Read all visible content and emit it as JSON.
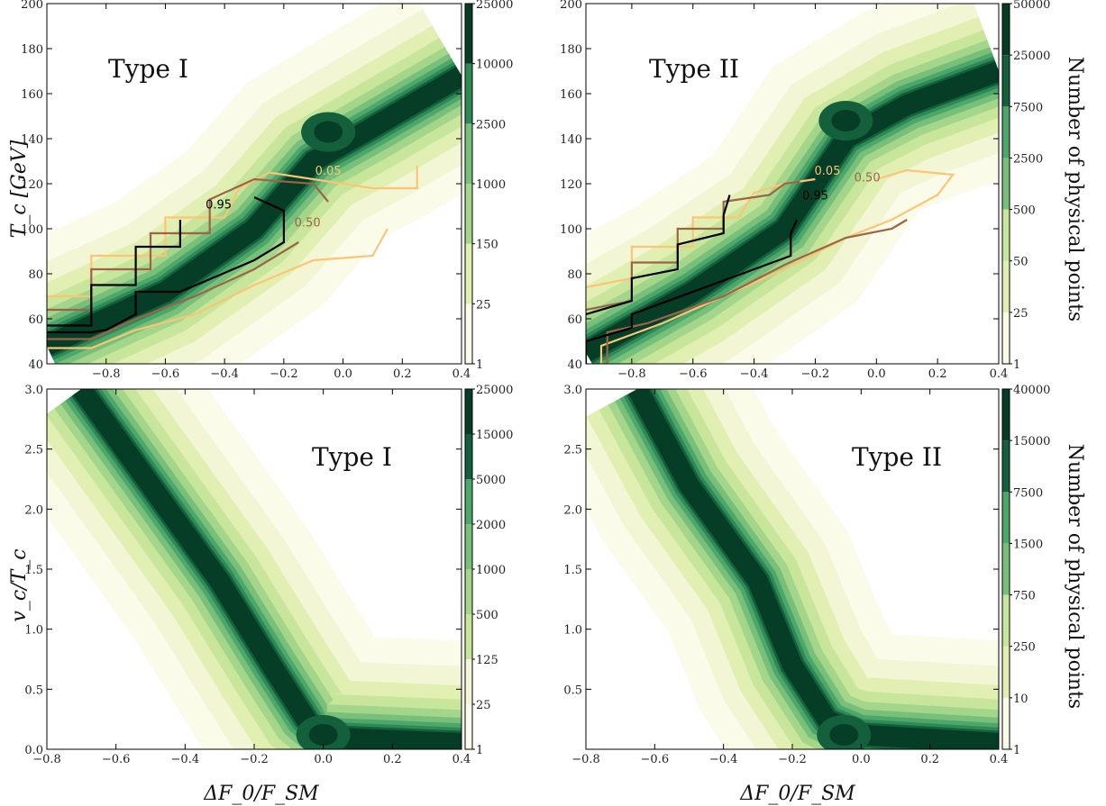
{
  "figure": {
    "ylabel_top": "T_c [GeV]",
    "ylabel_bottom": "v_c/T_c",
    "xlabel": "ΔF_0/F_SM",
    "colorbar_label": "Number of physical points"
  },
  "colors": {
    "levels": [
      "#fbfbe9",
      "#f2f6d4",
      "#e2efb3",
      "#c7e59b",
      "#a3d58a",
      "#78c07a",
      "#4da66a",
      "#2e8a55",
      "#14603c",
      "#063d26"
    ],
    "contour_005": "#fbc574",
    "contour_050": "#9c6446",
    "contour_095": "#000000"
  },
  "chart_data": [
    {
      "type": "heatmap",
      "panel": "top-left",
      "title": "Type I",
      "xlim": [
        -1.0,
        0.4
      ],
      "ylim": [
        40,
        200
      ],
      "xticks": [
        -0.8,
        -0.6,
        -0.4,
        -0.2,
        0.0,
        0.2,
        0.4
      ],
      "yticks": [
        40,
        60,
        80,
        100,
        120,
        140,
        160,
        180,
        200
      ],
      "ytick_labels": [
        "40",
        "60",
        "80",
        "100",
        "120",
        "140",
        "160",
        "180",
        "200"
      ],
      "colorbar_ticks": [
        "1",
        "25",
        "150",
        "1000",
        "2500",
        "10000",
        "25000"
      ],
      "density_ridge": [
        [
          -1.0,
          48
        ],
        [
          -0.6,
          72
        ],
        [
          -0.3,
          100
        ],
        [
          -0.1,
          130
        ],
        [
          0.1,
          145
        ],
        [
          0.4,
          168
        ]
      ],
      "peak": {
        "x": -0.05,
        "y": 143
      },
      "contour_levels": [
        {
          "label": "0.05",
          "upper": [
            [
              -1.0,
              70
            ],
            [
              -0.85,
              70
            ],
            [
              -0.85,
              88
            ],
            [
              -0.6,
              88
            ],
            [
              -0.6,
              105
            ],
            [
              -0.4,
              105
            ],
            [
              -0.35,
              118
            ],
            [
              -0.25,
              125
            ],
            [
              0.1,
              118
            ],
            [
              0.25,
              118
            ],
            [
              0.25,
              128
            ]
          ],
          "lower": [
            [
              -1.0,
              47
            ],
            [
              -0.85,
              47
            ],
            [
              -0.7,
              55
            ],
            [
              -0.5,
              62
            ],
            [
              -0.3,
              75
            ],
            [
              -0.1,
              86
            ],
            [
              0.1,
              88
            ],
            [
              0.15,
              100
            ]
          ]
        },
        {
          "label": "0.50",
          "upper": [
            [
              -1.0,
              64
            ],
            [
              -0.85,
              64
            ],
            [
              -0.85,
              82
            ],
            [
              -0.65,
              82
            ],
            [
              -0.65,
              98
            ],
            [
              -0.45,
              98
            ],
            [
              -0.45,
              113
            ],
            [
              -0.3,
              122
            ],
            [
              -0.1,
              120
            ],
            [
              -0.05,
              112
            ]
          ],
          "lower": [
            [
              -1.0,
              51
            ],
            [
              -0.85,
              51
            ],
            [
              -0.7,
              60
            ],
            [
              -0.5,
              70
            ],
            [
              -0.3,
              82
            ],
            [
              -0.15,
              94
            ]
          ]
        },
        {
          "label": "0.95",
          "upper": [
            [
              -1.0,
              57
            ],
            [
              -0.85,
              57
            ],
            [
              -0.85,
              75
            ],
            [
              -0.7,
              75
            ],
            [
              -0.7,
              92
            ],
            [
              -0.55,
              92
            ],
            [
              -0.55,
              104
            ]
          ],
          "lower": [
            [
              -1.0,
              54
            ],
            [
              -0.85,
              54
            ],
            [
              -0.8,
              55
            ],
            [
              -0.7,
              62
            ],
            [
              -0.7,
              72
            ],
            [
              -0.55,
              72
            ],
            [
              -0.3,
              86
            ],
            [
              -0.2,
              94
            ],
            [
              -0.2,
              108
            ],
            [
              -0.3,
              114
            ]
          ]
        }
      ],
      "contour_label_positions": [
        {
          "label": "0.05",
          "x": -0.05,
          "y": 124
        },
        {
          "label": "0.50",
          "x": -0.12,
          "y": 101
        },
        {
          "label": "0.95",
          "x": -0.42,
          "y": 109
        }
      ]
    },
    {
      "type": "heatmap",
      "panel": "top-right",
      "title": "Type II",
      "xlim": [
        -0.95,
        0.4
      ],
      "ylim": [
        40,
        200
      ],
      "xticks": [
        -0.8,
        -0.6,
        -0.4,
        -0.2,
        0.0,
        0.2,
        0.4
      ],
      "yticks": [
        40,
        60,
        80,
        100,
        120,
        140,
        160,
        180,
        200
      ],
      "ytick_labels": [
        "40",
        "60",
        "80",
        "100",
        "120",
        "140",
        "160",
        "180",
        "200"
      ],
      "colorbar_ticks": [
        "1",
        "25",
        "50",
        "500",
        "2500",
        "7500",
        "25000",
        "50000"
      ],
      "density_ridge": [
        [
          -0.95,
          45
        ],
        [
          -0.6,
          72
        ],
        [
          -0.3,
          100
        ],
        [
          -0.1,
          140
        ],
        [
          0.1,
          155
        ],
        [
          0.4,
          170
        ]
      ],
      "peak": {
        "x": -0.1,
        "y": 148
      },
      "contour_levels": [
        {
          "label": "0.05",
          "upper": [
            [
              -0.95,
              74
            ],
            [
              -0.8,
              78
            ],
            [
              -0.8,
              92
            ],
            [
              -0.6,
              92
            ],
            [
              -0.6,
              105
            ],
            [
              -0.45,
              105
            ],
            [
              -0.4,
              116
            ],
            [
              -0.3,
              120
            ],
            [
              -0.2,
              122
            ]
          ],
          "lower": [
            [
              -0.9,
              40
            ],
            [
              -0.9,
              48
            ],
            [
              -0.7,
              58
            ],
            [
              -0.5,
              70
            ],
            [
              -0.3,
              82
            ],
            [
              -0.1,
              96
            ],
            [
              0.05,
              104
            ],
            [
              0.2,
              115
            ],
            [
              0.25,
              124
            ],
            [
              0.1,
              126
            ],
            [
              0.0,
              122
            ]
          ]
        },
        {
          "label": "0.50",
          "upper": [
            [
              -0.95,
              64
            ],
            [
              -0.8,
              68
            ],
            [
              -0.8,
              85
            ],
            [
              -0.65,
              85
            ],
            [
              -0.65,
              100
            ],
            [
              -0.5,
              100
            ],
            [
              -0.5,
              112
            ],
            [
              -0.35,
              115
            ],
            [
              -0.3,
              120
            ],
            [
              -0.25,
              121
            ]
          ],
          "lower": [
            [
              -0.88,
              40
            ],
            [
              -0.88,
              54
            ],
            [
              -0.75,
              58
            ],
            [
              -0.5,
              70
            ],
            [
              -0.3,
              84
            ],
            [
              -0.1,
              96
            ],
            [
              0.05,
              100
            ],
            [
              0.1,
              104
            ]
          ]
        },
        {
          "label": "0.95",
          "upper": [
            [
              -0.95,
              62
            ],
            [
              -0.8,
              68
            ],
            [
              -0.8,
              78
            ],
            [
              -0.65,
              82
            ],
            [
              -0.65,
              93
            ],
            [
              -0.5,
              98
            ],
            [
              -0.5,
              106
            ],
            [
              -0.48,
              115
            ]
          ],
          "lower": [
            [
              -0.95,
              40
            ],
            [
              -0.95,
              50
            ],
            [
              -0.8,
              56
            ],
            [
              -0.8,
              62
            ],
            [
              -0.6,
              72
            ],
            [
              -0.4,
              82
            ],
            [
              -0.28,
              88
            ],
            [
              -0.28,
              98
            ],
            [
              -0.26,
              104
            ]
          ]
        }
      ],
      "contour_label_positions": [
        {
          "label": "0.05",
          "x": -0.16,
          "y": 124
        },
        {
          "label": "0.50",
          "x": -0.03,
          "y": 121
        },
        {
          "label": "0.95",
          "x": -0.2,
          "y": 113
        }
      ]
    },
    {
      "type": "heatmap",
      "panel": "bottom-left",
      "title": "Type I",
      "xlim": [
        -0.8,
        0.4
      ],
      "ylim": [
        0.0,
        3.0
      ],
      "xticks": [
        -0.8,
        -0.6,
        -0.4,
        -0.2,
        0.0,
        0.2,
        0.4
      ],
      "yticks": [
        0.0,
        0.5,
        1.0,
        1.5,
        2.0,
        2.5,
        3.0
      ],
      "ytick_labels": [
        "0.0",
        "0.5",
        "1.0",
        "1.5",
        "2.0",
        "2.5",
        "3.0"
      ],
      "colorbar_ticks": [
        "1",
        "25",
        "125",
        "500",
        "1000",
        "2000",
        "5000",
        "15000",
        "25000"
      ],
      "density_ridge": [
        [
          -0.7,
          3.0
        ],
        [
          -0.5,
          2.2
        ],
        [
          -0.3,
          1.4
        ],
        [
          -0.15,
          0.7
        ],
        [
          -0.05,
          0.25
        ],
        [
          0.0,
          0.1
        ],
        [
          0.4,
          0.05
        ]
      ],
      "peak": {
        "x": 0.0,
        "y": 0.12
      }
    },
    {
      "type": "heatmap",
      "panel": "bottom-right",
      "title": "Type II",
      "xlim": [
        -0.8,
        0.4
      ],
      "ylim": [
        0.0,
        3.0
      ],
      "xticks": [
        -0.8,
        -0.6,
        -0.4,
        -0.2,
        0.0,
        0.2,
        0.4
      ],
      "yticks": [
        0.5,
        1.0,
        1.5,
        2.0,
        2.5,
        3.0
      ],
      "ytick_labels": [
        "0.5",
        "1.0",
        "1.5",
        "2.0",
        "2.5",
        "3.0"
      ],
      "colorbar_ticks": [
        "1",
        "10",
        "250",
        "750",
        "1500",
        "7500",
        "15000",
        "40000"
      ],
      "density_ridge": [
        [
          -0.65,
          3.0
        ],
        [
          -0.5,
          2.2
        ],
        [
          -0.3,
          1.4
        ],
        [
          -0.2,
          0.7
        ],
        [
          -0.1,
          0.25
        ],
        [
          0.0,
          0.12
        ],
        [
          0.4,
          0.05
        ]
      ],
      "peak": {
        "x": -0.05,
        "y": 0.12
      }
    }
  ]
}
